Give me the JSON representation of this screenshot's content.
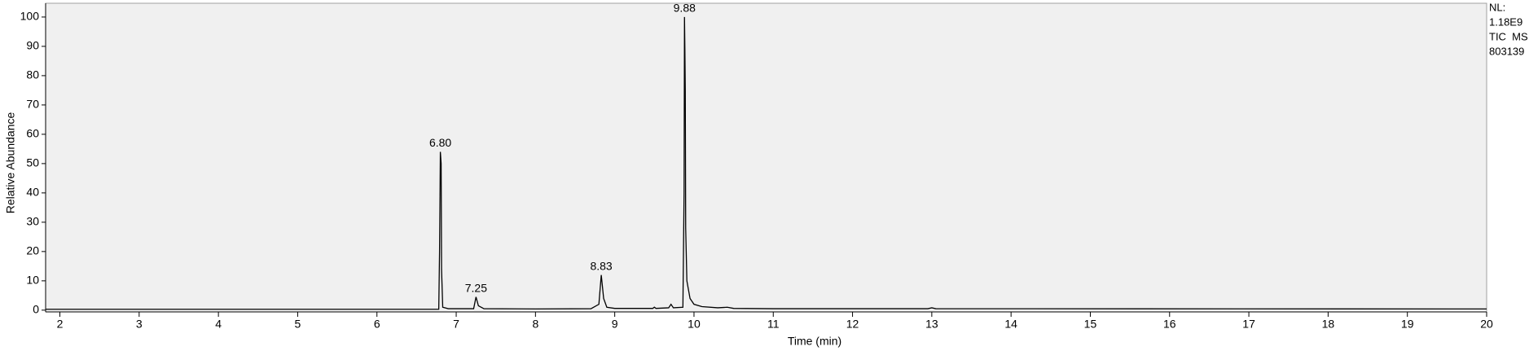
{
  "chart_data": {
    "type": "line",
    "xlabel": "Time (min)",
    "ylabel": "Relative Abundance",
    "side_labels": [
      "NL:",
      "1.18E9",
      "TIC  MS",
      "803139"
    ],
    "color": "#000000",
    "x": [
      1.82,
      6.0,
      6.78,
      6.79,
      6.8,
      6.81,
      6.815,
      6.83,
      6.9,
      7.22,
      7.25,
      7.28,
      7.35,
      8.0,
      8.7,
      8.8,
      8.83,
      8.86,
      8.9,
      9.0,
      9.48,
      9.5,
      9.52,
      9.68,
      9.71,
      9.74,
      9.86,
      9.875,
      9.88,
      9.885,
      9.89,
      9.895,
      9.91,
      9.95,
      10.0,
      10.1,
      10.3,
      10.42,
      10.5,
      11.0,
      12.95,
      13.0,
      13.05,
      20.0
    ],
    "values": [
      0.3,
      0.3,
      0.3,
      20,
      54,
      50,
      14,
      1,
      0.5,
      0.5,
      4.5,
      1.5,
      0.5,
      0.4,
      0.5,
      2,
      12,
      4,
      1,
      0.6,
      0.6,
      1,
      0.6,
      0.8,
      2,
      0.8,
      1,
      40,
      100,
      89,
      75,
      28,
      10,
      4,
      2,
      1.2,
      0.8,
      1,
      0.6,
      0.5,
      0.5,
      0.8,
      0.5,
      0.4
    ],
    "annotations": [
      {
        "text": "6.80",
        "x": 6.8,
        "y": 54
      },
      {
        "text": "7.25",
        "x": 7.25,
        "y": 4.5
      },
      {
        "text": "8.83",
        "x": 8.83,
        "y": 12
      },
      {
        "text": "9.88",
        "x": 9.88,
        "y": 100
      }
    ],
    "xlim": [
      1.82,
      20
    ],
    "ylim": [
      -0.6,
      104.7
    ],
    "xticks": [
      2,
      3,
      4,
      5,
      6,
      7,
      8,
      9,
      10,
      11,
      12,
      13,
      14,
      15,
      16,
      17,
      18,
      19,
      20
    ],
    "yticks": [
      0,
      10,
      20,
      30,
      40,
      50,
      60,
      70,
      80,
      90,
      100
    ]
  }
}
